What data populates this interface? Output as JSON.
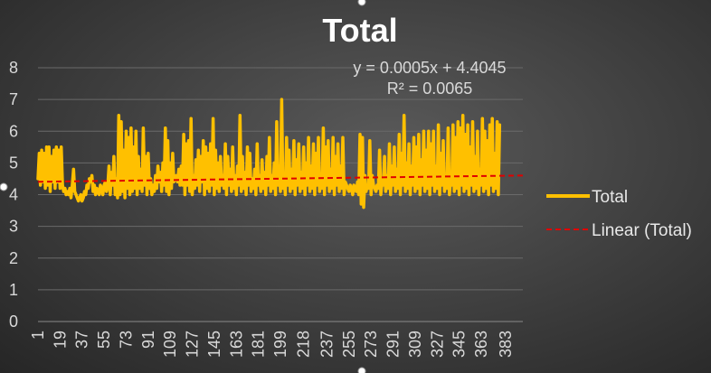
{
  "chart_data": {
    "type": "line",
    "title": "Total",
    "xlabel": "",
    "ylabel": "",
    "ylim": [
      0,
      8
    ],
    "y_ticks": [
      "0",
      "1",
      "2",
      "3",
      "4",
      "5",
      "6",
      "7",
      "8"
    ],
    "x_range": [
      1,
      397
    ],
    "x_tick_labels": [
      "1",
      "19",
      "37",
      "55",
      "73",
      "91",
      "109",
      "127",
      "145",
      "163",
      "181",
      "199",
      "218",
      "237",
      "255",
      "273",
      "291",
      "309",
      "327",
      "345",
      "363",
      "383"
    ],
    "grid": true,
    "legend_position": "right",
    "colors": {
      "series": "#ffc000",
      "trend": "#e00000"
    },
    "series": [
      {
        "name": "Total",
        "x_start": 1,
        "values": [
          4.5,
          5.3,
          4.3,
          5.4,
          4.4,
          5.3,
          4.2,
          5.5,
          4.3,
          5.5,
          4.1,
          5.2,
          4.4,
          5.4,
          4.2,
          5.5,
          4.4,
          5.4,
          4.2,
          5.5,
          4.3,
          4.1,
          4.2,
          4.0,
          4.1,
          4.0,
          4.2,
          3.9,
          4.3,
          4.8,
          4.1,
          4.0,
          3.9,
          3.8,
          3.9,
          4.0,
          3.8,
          3.9,
          4.1,
          4.0,
          4.3,
          4.2,
          4.5,
          4.4,
          4.6,
          4.1,
          4.3,
          4.0,
          4.2,
          4.1,
          4.0,
          4.3,
          4.2,
          4.0,
          4.3,
          4.4,
          4.1,
          4.3,
          4.9,
          4.0,
          4.7,
          4.3,
          5.2,
          4.0,
          4.5,
          3.9,
          6.5,
          4.0,
          6.3,
          4.1,
          5.4,
          3.9,
          6.0,
          4.2,
          5.8,
          4.0,
          6.1,
          4.1,
          5.5,
          4.2,
          6.0,
          4.0,
          5.2,
          4.2,
          4.8,
          4.1,
          6.1,
          4.3,
          5.2,
          4.0,
          5.3,
          4.2,
          4.5,
          4.0,
          4.3,
          4.1,
          4.6,
          4.2,
          4.9,
          4.4,
          4.7,
          4.1,
          5.0,
          4.3,
          6.1,
          4.1,
          5.7,
          4.0,
          5.0,
          4.2,
          5.3,
          4.4,
          4.5,
          4.6,
          4.4,
          4.8,
          4.3,
          4.9,
          4.3,
          5.9,
          4.0,
          5.6,
          4.3,
          5.7,
          4.1,
          6.4,
          4.0,
          4.6,
          4.2,
          5.1,
          4.3,
          5.4,
          4.1,
          5.2,
          4.4,
          5.7,
          4.0,
          5.5,
          4.2,
          5.3,
          4.1,
          5.6,
          4.3,
          6.4,
          4.0,
          5.4,
          4.2,
          5.0,
          4.1,
          5.2,
          4.3,
          4.6,
          4.2,
          5.6,
          4.0,
          5.2,
          4.3,
          4.8,
          4.1,
          5.5,
          4.2,
          4.6,
          4.0,
          4.9,
          4.3,
          6.5,
          4.1,
          5.2,
          4.2,
          4.7,
          4.0,
          5.5,
          4.3,
          5.3,
          4.1,
          4.5,
          4.2,
          4.8,
          4.0,
          5.6,
          4.3,
          4.6,
          4.1,
          5.1,
          4.2,
          4.7,
          4.0,
          5.2,
          4.3,
          5.8,
          4.1,
          4.6,
          4.2,
          5.0,
          4.0,
          6.3,
          4.3,
          4.9,
          4.1,
          7.0,
          4.2,
          4.6,
          4.0,
          5.8,
          4.3,
          5.4,
          4.1,
          4.8,
          4.2,
          5.7,
          4.0,
          5.1,
          4.3,
          5.6,
          4.1,
          4.7,
          4.2,
          5.5,
          4.0,
          5.0,
          4.3,
          5.8,
          4.1,
          4.9,
          4.2,
          5.6,
          4.0,
          5.3,
          4.3,
          5.8,
          4.1,
          4.6,
          4.2,
          6.1,
          4.0,
          5.5,
          4.3,
          5.7,
          4.1,
          4.8,
          4.2,
          5.8,
          4.0,
          5.2,
          4.3,
          5.6,
          4.1,
          4.9,
          4.2,
          5.8,
          4.0,
          4.4,
          4.3,
          4.2,
          4.1,
          4.3,
          4.2,
          4.0,
          4.3,
          4.2,
          4.1,
          4.4,
          4.0,
          5.9,
          3.7,
          5.8,
          3.6,
          4.6,
          4.1,
          4.3,
          4.2,
          5.7,
          4.0,
          4.6,
          4.3,
          4.2,
          4.1,
          4.3,
          4.2,
          5.4,
          4.0,
          4.4,
          4.3,
          5.2,
          4.1,
          4.6,
          4.2,
          5.6,
          4.0,
          4.9,
          4.3,
          5.5,
          4.1,
          4.8,
          4.2,
          5.9,
          4.0,
          5.3,
          4.3,
          6.5,
          4.1,
          5.0,
          4.2,
          5.6,
          4.0,
          4.9,
          4.3,
          5.8,
          4.1,
          5.5,
          4.2,
          5.9,
          4.0,
          5.1,
          4.3,
          6.0,
          4.1,
          5.4,
          4.2,
          6.0,
          4.0,
          5.6,
          4.3,
          6.0,
          4.1,
          4.9,
          4.2,
          6.2,
          4.0,
          5.3,
          4.3,
          5.7,
          4.1,
          4.6,
          4.2,
          6.1,
          4.0,
          4.5,
          4.3,
          6.2,
          4.1,
          5.8,
          4.2,
          6.3,
          4.0,
          6.1,
          4.3,
          6.5,
          4.1,
          5.9,
          4.2,
          6.2,
          4.0,
          5.5,
          4.3,
          6.3,
          4.1,
          5.2,
          4.2,
          6.0,
          4.0,
          4.8,
          4.3,
          6.4,
          4.1,
          6.0,
          4.2,
          5.7,
          4.0,
          6.2,
          4.3,
          6.4,
          4.1,
          5.3,
          4.2,
          6.3,
          4.0,
          6.2
        ]
      }
    ],
    "trendline": {
      "label": "Linear (Total)",
      "slope": 0.0005,
      "intercept": 4.4045,
      "equation": "y = 0.0005x + 4.4045",
      "r_squared": "R² = 0.0065"
    }
  }
}
